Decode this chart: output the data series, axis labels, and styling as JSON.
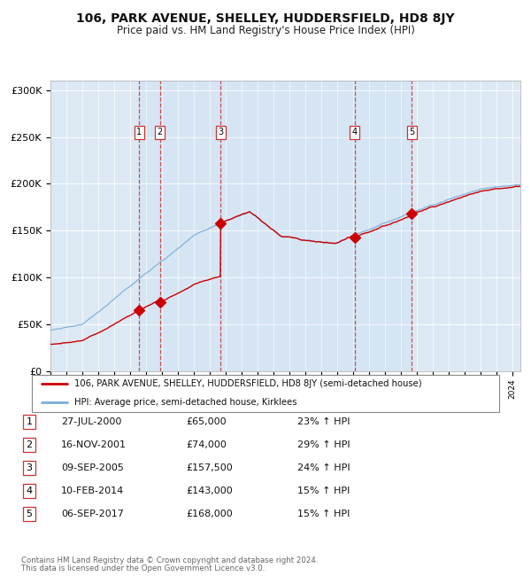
{
  "title": "106, PARK AVENUE, SHELLEY, HUDDERSFIELD, HD8 8JY",
  "subtitle": "Price paid vs. HM Land Registry's House Price Index (HPI)",
  "footer1": "Contains HM Land Registry data © Crown copyright and database right 2024.",
  "footer2": "This data is licensed under the Open Government Licence v3.0.",
  "legend_red": "106, PARK AVENUE, SHELLEY, HUDDERSFIELD, HD8 8JY (semi-detached house)",
  "legend_blue": "HPI: Average price, semi-detached house, Kirklees",
  "transactions": [
    {
      "num": 1,
      "date": "27-JUL-2000",
      "price": 65000,
      "pct": "23%",
      "year_x": 2000.57
    },
    {
      "num": 2,
      "date": "16-NOV-2001",
      "price": 74000,
      "pct": "29%",
      "year_x": 2001.88
    },
    {
      "num": 3,
      "date": "09-SEP-2005",
      "price": 157500,
      "pct": "24%",
      "year_x": 2005.69
    },
    {
      "num": 4,
      "date": "10-FEB-2014",
      "price": 143000,
      "pct": "15%",
      "year_x": 2014.11
    },
    {
      "num": 5,
      "date": "06-SEP-2017",
      "price": 168000,
      "pct": "15%",
      "year_x": 2017.69
    }
  ],
  "xmin": 1995.0,
  "xmax": 2024.5,
  "ymin": 0,
  "ymax": 310000,
  "yticks": [
    0,
    50000,
    100000,
    150000,
    200000,
    250000,
    300000
  ],
  "background_color": "#dce9f5",
  "red_color": "#cc0000",
  "blue_color": "#7aaddb"
}
